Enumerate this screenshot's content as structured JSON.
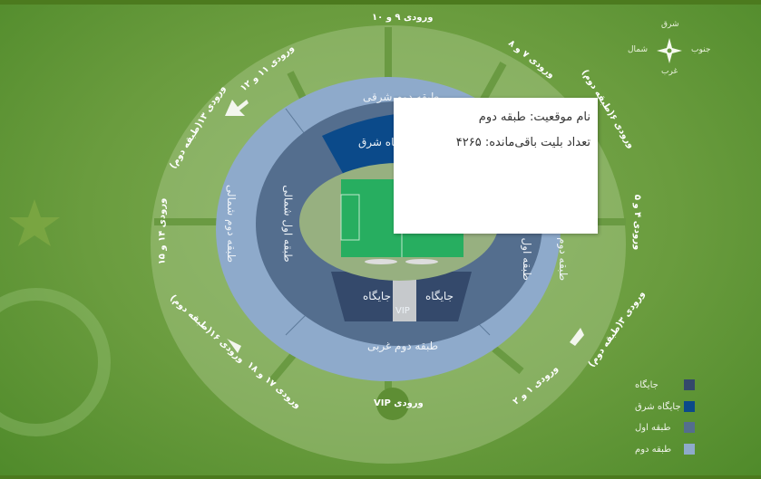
{
  "gates": {
    "g9_10": "ورودی ۹ و ۱۰",
    "g11_12": "ورودی ۱۱ و ۱۲",
    "g7_8": "ورودی ۷ و ۸",
    "g13": "ورودی ۱۳(طبقه دوم)",
    "g6": "ورودی ۶(طبقه دوم)",
    "g14_15": "ورودی ۱۴ و ۱۵",
    "g4_5": "ورودی ۴ و ۵",
    "g16": "ورودی ۱۶(طبقه دوم)",
    "g3": "ورودی ۳(طبقه دوم)",
    "g17_18": "ورودی ۱۷ و ۱۸",
    "g1_2": "ورودی ۱ و ۲",
    "vip": "ورودی VIP"
  },
  "sections": {
    "upper_east": "طبقه دوم شرقی",
    "east_box": "جایگاه شرق",
    "upper_north": "طبقه دوم شمالی",
    "lower_north": "طبقه اول شمالی",
    "upper_south": "طبقه دوم جنوبی",
    "lower_south": "طبقه اول جنوبی",
    "box_left": "جایگاه",
    "box_right": "جایگاه",
    "vip": "VIP",
    "upper_west": "طبقه دوم غربی"
  },
  "tooltip": {
    "name": "نام موقعیت: طبقه دوم",
    "remaining": "تعداد بلیت باقی‌مانده: ۴۲۶۵"
  },
  "compass": {
    "east": "شرق",
    "west": "غرب",
    "north": "شمال",
    "south": "جنوب"
  },
  "legend": [
    {
      "label": "جایگاه",
      "color": "#34496b"
    },
    {
      "label": "جایگاه شرق",
      "color": "#0b4a8a"
    },
    {
      "label": "طبقه اول",
      "color": "#546e8e"
    },
    {
      "label": "طبقه دوم",
      "color": "#8eaacb"
    }
  ]
}
